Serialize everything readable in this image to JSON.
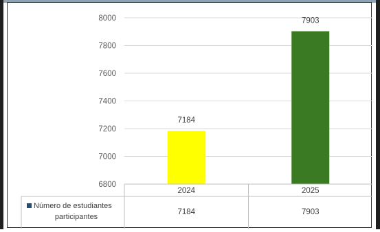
{
  "chart_data": {
    "type": "bar",
    "categories": [
      "2024",
      "2025"
    ],
    "series": [
      {
        "name": "Número de estudiantes participantes",
        "values": [
          7184,
          7903
        ]
      }
    ],
    "bar_colors": [
      "#ffff00",
      "#3a7a23"
    ],
    "legend_marker_color": "#1f4e79",
    "ylim": [
      6800,
      8000
    ],
    "yticks": [
      6800,
      7000,
      7200,
      7400,
      7600,
      7800,
      8000
    ],
    "data_labels": [
      "7184",
      "7903"
    ],
    "grid": true,
    "legend": "data-table-left",
    "data_table": {
      "row_label_line1": "Número de estudiantes",
      "row_label_line2": "participantes",
      "cells": [
        "7184",
        "7903"
      ]
    }
  }
}
